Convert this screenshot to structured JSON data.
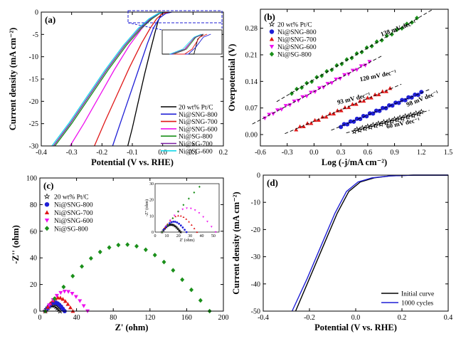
{
  "chart_data": [
    {
      "panel_label": "(a)",
      "type": "line",
      "xlabel": "Potential (V vs. RHE)",
      "ylabel": "Current density (mA cm⁻²)",
      "xlim": [
        -0.4,
        0.2
      ],
      "ylim": [
        -30,
        0
      ],
      "xticks": [
        "-0.4",
        "-0.3",
        "-0.2",
        "-0.1",
        "0.0",
        "0.1",
        "0.2"
      ],
      "yticks": [
        "0",
        "-5",
        "-10",
        "-15",
        "-20",
        "-25",
        "-30"
      ],
      "legend_position": "bottom-right",
      "inset": "zoomed view of onset region (dashed box)",
      "series": [
        {
          "name": "20 wt% Pt/C",
          "color": "#000000",
          "x": [
            -0.115,
            -0.1,
            -0.08,
            -0.06,
            -0.04,
            -0.025,
            -0.015,
            -0.005,
            0.01
          ],
          "y": [
            -30,
            -26,
            -20,
            -14,
            -8.5,
            -4.5,
            -2,
            -0.5,
            0
          ]
        },
        {
          "name": "Ni@SNG-800",
          "color": "#1f1fd6",
          "x": [
            -0.165,
            -0.14,
            -0.11,
            -0.08,
            -0.05,
            -0.03,
            -0.01,
            0.01,
            0.03
          ],
          "y": [
            -30,
            -25,
            -19,
            -13,
            -7,
            -3.5,
            -1.3,
            -0.3,
            0
          ]
        },
        {
          "name": "Ni@SNG-700",
          "color": "#e01818",
          "x": [
            -0.225,
            -0.19,
            -0.15,
            -0.11,
            -0.07,
            -0.04,
            -0.02,
            0.0,
            0.02
          ],
          "y": [
            -30,
            -24.5,
            -18.5,
            -12.5,
            -7,
            -3.5,
            -1.5,
            -0.3,
            0
          ]
        },
        {
          "name": "Ni@SNG-600",
          "color": "#ee10ee",
          "x": [
            -0.305,
            -0.26,
            -0.21,
            -0.16,
            -0.11,
            -0.07,
            -0.04,
            -0.015,
            0.01
          ],
          "y": [
            -30,
            -25,
            -19,
            -13,
            -7.5,
            -3.8,
            -1.6,
            -0.4,
            0
          ]
        },
        {
          "name": "Ni@SG-800",
          "color": "#1a8f1a",
          "x": [
            -0.355,
            -0.3,
            -0.24,
            -0.18,
            -0.12,
            -0.07,
            -0.035,
            -0.01,
            0.01
          ],
          "y": [
            -30,
            -25,
            -19,
            -13,
            -7.5,
            -3.6,
            -1.5,
            -0.3,
            0
          ]
        },
        {
          "name": "Ni@SG-700",
          "color": "#7a1fa2",
          "x": [
            -0.36,
            -0.305,
            -0.245,
            -0.185,
            -0.125,
            -0.075,
            -0.04,
            -0.012,
            0.008
          ],
          "y": [
            -30,
            -25,
            -19,
            -13,
            -7.5,
            -3.6,
            -1.5,
            -0.3,
            0
          ]
        },
        {
          "name": "Ni@SG-600",
          "color": "#18d8e8",
          "x": [
            -0.365,
            -0.31,
            -0.25,
            -0.19,
            -0.13,
            -0.08,
            -0.045,
            -0.015,
            0.005
          ],
          "y": [
            -30,
            -25,
            -19,
            -13,
            -7.5,
            -3.6,
            -1.5,
            -0.3,
            0
          ]
        }
      ]
    },
    {
      "panel_label": "(b)",
      "type": "scatter",
      "xlabel": "Log (-j/mA cm⁻²)",
      "ylabel": "Overpotential (V)",
      "xlim": [
        -0.6,
        1.5
      ],
      "ylim": [
        -0.03,
        0.33
      ],
      "xticks": [
        "-0.6",
        "-0.3",
        "0.0",
        "0.3",
        "0.6",
        "0.9",
        "1.2",
        "1.5"
      ],
      "yticks": [
        "0.00",
        "0.07",
        "0.14",
        "0.21",
        "0.28"
      ],
      "legend_position": "top-left",
      "series": [
        {
          "name": "20 wt% Pt/C",
          "color": "#000000",
          "marker": "star",
          "x0": 0.45,
          "x1": 1.2,
          "y0": 0.01,
          "y1": 0.058,
          "slope_label": "60 mV dec⁻¹"
        },
        {
          "name": "Ni@SNG-800",
          "color": "#1f1fd6",
          "marker": "circle",
          "x0": 0.3,
          "x1": 1.2,
          "y0": 0.022,
          "y1": 0.11,
          "slope_label": "98 mV dec⁻¹"
        },
        {
          "name": "Ni@SNG-700",
          "color": "#e01818",
          "marker": "triangle",
          "x0": -0.2,
          "x1": 0.85,
          "y0": 0.015,
          "y1": 0.12,
          "slope_label": "93 mV dec⁻¹"
        },
        {
          "name": "Ni@SNG-600",
          "color": "#ee10ee",
          "marker": "triangle-down",
          "x0": -0.55,
          "x1": 0.62,
          "y0": 0.045,
          "y1": 0.19,
          "slope_label": "120 mV dec⁻¹"
        },
        {
          "name": "Ni@SG-800",
          "color": "#1a8f1a",
          "marker": "diamond",
          "x0": -0.25,
          "x1": 1.15,
          "y0": 0.11,
          "y1": 0.305,
          "slope_label": "138 mV dec⁻¹"
        }
      ]
    },
    {
      "panel_label": "(c)",
      "type": "scatter",
      "xlabel": "Z' (ohm)",
      "ylabel": "-Z'' (ohm)",
      "xlim": [
        0,
        200
      ],
      "ylim": [
        0,
        100
      ],
      "xticks": [
        "0",
        "40",
        "80",
        "120",
        "160",
        "200"
      ],
      "yticks": [
        "0",
        "20",
        "40",
        "60",
        "80",
        "100"
      ],
      "legend_position": "top-left",
      "inset_xticks": [
        "0",
        "10",
        "20",
        "30",
        "40",
        "50"
      ],
      "inset_yticks": [
        "0",
        "10",
        "20",
        "30"
      ],
      "inset_xlabel": "Z' (ohm)",
      "inset_ylabel": "-Z'' (ohm)",
      "series": [
        {
          "name": "20 wt% Pt/C",
          "color": "#000000",
          "marker": "star",
          "x_start": 6,
          "x_end": 22,
          "peak": 5
        },
        {
          "name": "Ni@SNG-800",
          "color": "#1f1fd6",
          "marker": "circle",
          "x_start": 6,
          "x_end": 27,
          "peak": 7
        },
        {
          "name": "Ni@SNG-700",
          "color": "#e01818",
          "marker": "triangle",
          "x_start": 6,
          "x_end": 36,
          "peak": 11
        },
        {
          "name": "Ni@SNG-600",
          "color": "#ee10ee",
          "marker": "triangle-down",
          "x_start": 6,
          "x_end": 52,
          "peak": 16
        },
        {
          "name": "Ni@SG-800",
          "color": "#1a8f1a",
          "marker": "diamond",
          "x_start": 6,
          "x_end": 185,
          "peak": 54
        }
      ]
    },
    {
      "panel_label": "(d)",
      "type": "line",
      "xlabel": "Potential (V vs. RHE)",
      "ylabel": "Current density (mA cm⁻²)",
      "xlim": [
        -0.4,
        0.4
      ],
      "ylim": [
        -50,
        0
      ],
      "xticks": [
        "-0.4",
        "-0.2",
        "0.0",
        "0.2",
        "0.4"
      ],
      "yticks": [
        "0",
        "-10",
        "-20",
        "-30",
        "-40",
        "-50"
      ],
      "legend_position": "bottom-right",
      "series": [
        {
          "name": "Initial curve",
          "color": "#000000",
          "x": [
            -0.26,
            -0.2,
            -0.14,
            -0.08,
            -0.03,
            0.02,
            0.08,
            0.15,
            0.25,
            0.4
          ],
          "y": [
            -50,
            -38,
            -26,
            -14,
            -6,
            -2.5,
            -1,
            -0.3,
            0,
            0
          ]
        },
        {
          "name": "1000 cycles",
          "color": "#1f1fd6",
          "x": [
            -0.275,
            -0.21,
            -0.15,
            -0.09,
            -0.04,
            0.01,
            0.07,
            0.15,
            0.25,
            0.4
          ],
          "y": [
            -50,
            -38,
            -26,
            -14,
            -6,
            -2.5,
            -1,
            -0.3,
            0,
            0
          ]
        }
      ]
    }
  ]
}
